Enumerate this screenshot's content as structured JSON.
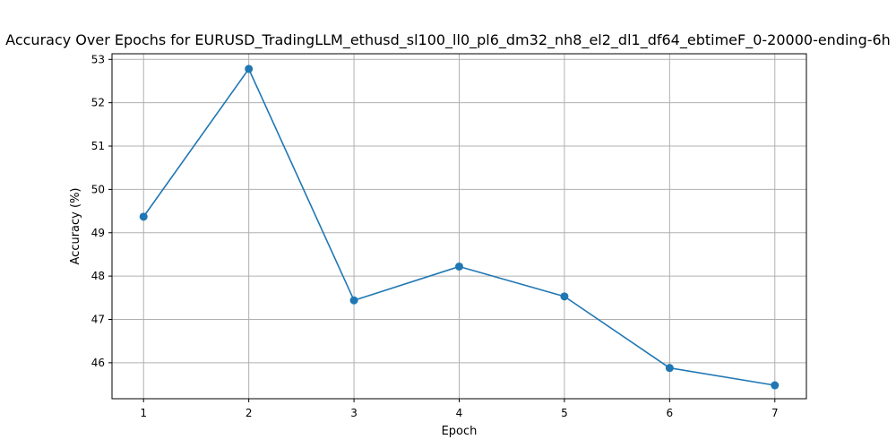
{
  "chart_data": {
    "type": "line",
    "title": "Accuracy Over Epochs for EURUSD_TradingLLM_ethusd_sl100_ll0_pl6_dm32_nh8_el2_dl1_df64_ebtimeF_0-20000-ending-6h",
    "xlabel": "Epoch",
    "ylabel": "Accuracy (%)",
    "x": [
      1,
      2,
      3,
      4,
      5,
      6,
      7
    ],
    "series": [
      {
        "values": [
          49.37,
          52.78,
          47.44,
          48.22,
          47.53,
          45.88,
          45.48
        ],
        "color": "#1f77b4",
        "marker": "circle"
      }
    ],
    "xlim": [
      0.7,
      7.3
    ],
    "ylim": [
      45.17,
      53.13
    ],
    "xticks": [
      1,
      2,
      3,
      4,
      5,
      6,
      7
    ],
    "yticks": [
      46,
      47,
      48,
      49,
      50,
      51,
      52,
      53
    ],
    "grid": true,
    "gridColor": "#b0b0b0"
  }
}
